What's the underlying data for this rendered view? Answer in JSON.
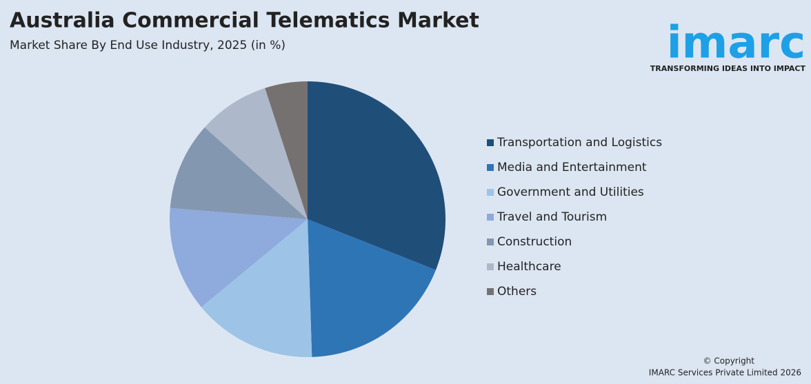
{
  "chart_data": {
    "type": "pie",
    "title": "Australia Commercial Telematics Market",
    "subtitle": "Market Share By End Use Industry, 2025 (in %)",
    "categories": [
      "Transportation and Logistics",
      "Media and Entertainment",
      "Government and Utilities",
      "Travel and Tourism",
      "Construction",
      "Healthcare",
      "Others"
    ],
    "values": [
      31,
      18.5,
      14.5,
      12.3,
      10.3,
      8.4,
      5
    ],
    "colors": [
      "#1f4e79",
      "#2e75b6",
      "#9dc3e6",
      "#8faadc",
      "#8497b0",
      "#adb9ca",
      "#767171"
    ],
    "legend": "right"
  },
  "logo": {
    "name": "imarc",
    "tagline": "TRANSFORMING IDEAS INTO IMPACT"
  },
  "footer": {
    "copyright": "© Copyright",
    "company": "IMARC Services Private Limited 2026"
  }
}
